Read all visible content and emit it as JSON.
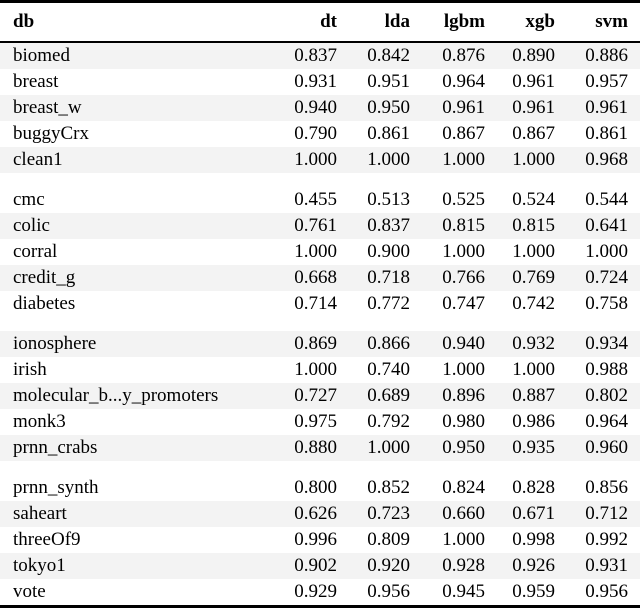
{
  "table": {
    "columns": [
      "db",
      "dt",
      "lda",
      "lgbm",
      "xgb",
      "svm"
    ],
    "groups": [
      {
        "rows": [
          {
            "db": "biomed",
            "values": [
              "0.837",
              "0.842",
              "0.876",
              "0.890",
              "0.886"
            ]
          },
          {
            "db": "breast",
            "values": [
              "0.931",
              "0.951",
              "0.964",
              "0.961",
              "0.957"
            ]
          },
          {
            "db": "breast_w",
            "values": [
              "0.940",
              "0.950",
              "0.961",
              "0.961",
              "0.961"
            ]
          },
          {
            "db": "buggyCrx",
            "values": [
              "0.790",
              "0.861",
              "0.867",
              "0.867",
              "0.861"
            ]
          },
          {
            "db": "clean1",
            "values": [
              "1.000",
              "1.000",
              "1.000",
              "1.000",
              "0.968"
            ]
          }
        ]
      },
      {
        "rows": [
          {
            "db": "cmc",
            "values": [
              "0.455",
              "0.513",
              "0.525",
              "0.524",
              "0.544"
            ]
          },
          {
            "db": "colic",
            "values": [
              "0.761",
              "0.837",
              "0.815",
              "0.815",
              "0.641"
            ]
          },
          {
            "db": "corral",
            "values": [
              "1.000",
              "0.900",
              "1.000",
              "1.000",
              "1.000"
            ]
          },
          {
            "db": "credit_g",
            "values": [
              "0.668",
              "0.718",
              "0.766",
              "0.769",
              "0.724"
            ]
          },
          {
            "db": "diabetes",
            "values": [
              "0.714",
              "0.772",
              "0.747",
              "0.742",
              "0.758"
            ]
          }
        ]
      },
      {
        "rows": [
          {
            "db": "ionosphere",
            "values": [
              "0.869",
              "0.866",
              "0.940",
              "0.932",
              "0.934"
            ]
          },
          {
            "db": "irish",
            "values": [
              "1.000",
              "0.740",
              "1.000",
              "1.000",
              "0.988"
            ]
          },
          {
            "db": "molecular_b...y_promoters",
            "values": [
              "0.727",
              "0.689",
              "0.896",
              "0.887",
              "0.802"
            ]
          },
          {
            "db": "monk3",
            "values": [
              "0.975",
              "0.792",
              "0.980",
              "0.986",
              "0.964"
            ]
          },
          {
            "db": "prnn_crabs",
            "values": [
              "0.880",
              "1.000",
              "0.950",
              "0.935",
              "0.960"
            ]
          }
        ]
      },
      {
        "rows": [
          {
            "db": "prnn_synth",
            "values": [
              "0.800",
              "0.852",
              "0.824",
              "0.828",
              "0.856"
            ]
          },
          {
            "db": "saheart",
            "values": [
              "0.626",
              "0.723",
              "0.660",
              "0.671",
              "0.712"
            ]
          },
          {
            "db": "threeOf9",
            "values": [
              "0.996",
              "0.809",
              "1.000",
              "0.998",
              "0.992"
            ]
          },
          {
            "db": "tokyo1",
            "values": [
              "0.902",
              "0.920",
              "0.928",
              "0.926",
              "0.931"
            ]
          },
          {
            "db": "vote",
            "values": [
              "0.929",
              "0.956",
              "0.945",
              "0.959",
              "0.956"
            ]
          }
        ]
      }
    ]
  },
  "colors": {
    "stripe": "#f3f3f3",
    "rule": "#000000",
    "text": "#000000",
    "background": "#ffffff"
  }
}
